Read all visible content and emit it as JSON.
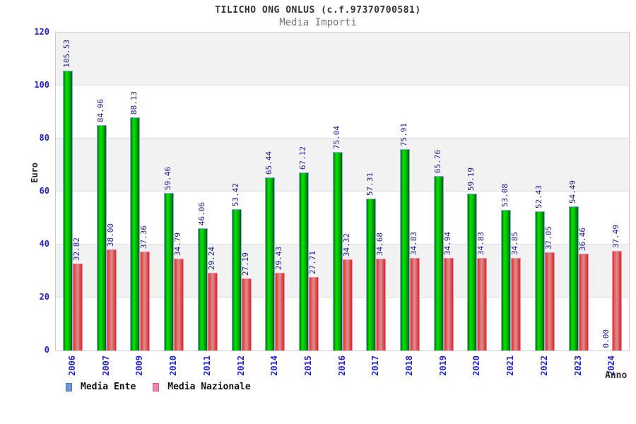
{
  "header": {
    "title": "TILICHO ONG ONLUS (c.f.97370700581)",
    "subtitle": "Media Importi"
  },
  "chart_data": {
    "type": "bar",
    "title": "TILICHO ONG ONLUS (c.f.97370700581)",
    "subtitle": "Media Importi",
    "xlabel": "Anno",
    "ylabel": "Euro",
    "ylim": [
      0,
      120
    ],
    "yticks": [
      0,
      20,
      40,
      60,
      80,
      100,
      120
    ],
    "grid": "horizontal-bands-alternating",
    "legend_position": "bottom-left",
    "categories": [
      "2006",
      "2007",
      "2009",
      "2010",
      "2011",
      "2012",
      "2014",
      "2015",
      "2016",
      "2017",
      "2018",
      "2019",
      "2020",
      "2021",
      "2022",
      "2023",
      "2024"
    ],
    "series": [
      {
        "name": "Media Ente",
        "legend_color": "#6b99d8",
        "bar_style": "green-cylinder-gradient",
        "values": [
          105.53,
          84.96,
          88.13,
          59.46,
          46.06,
          53.42,
          65.44,
          67.12,
          75.04,
          57.31,
          75.91,
          65.76,
          59.19,
          53.08,
          52.43,
          54.49,
          0.0
        ]
      },
      {
        "name": "Media Nazionale",
        "legend_color": "#ee85ad",
        "bar_style": "red-cylinder-gradient",
        "values": [
          32.82,
          38.0,
          37.36,
          34.79,
          29.24,
          27.19,
          29.43,
          27.71,
          34.32,
          34.68,
          34.83,
          34.94,
          34.83,
          34.85,
          37.05,
          36.46,
          37.49
        ]
      }
    ]
  },
  "colors": {
    "tick_label": "#2222cc",
    "value_label": "#1c1c8f",
    "band_gray": "#f2f2f2",
    "plot_border": "#cccccc",
    "green_bar_border": "#85acf0",
    "red_bar_border": "#f08cb0"
  }
}
